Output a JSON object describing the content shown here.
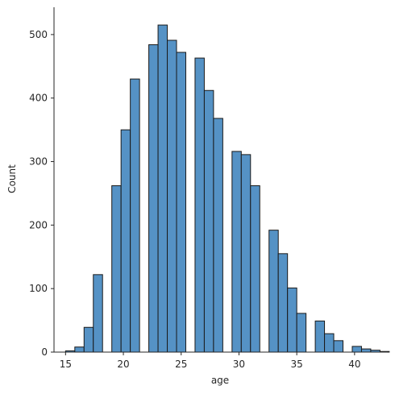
{
  "chart_data": {
    "type": "histogram",
    "xlabel": "age",
    "ylabel": "Count",
    "xlim": [
      14.0,
      42.8
    ],
    "ylim": [
      0,
      543
    ],
    "xticks": [
      15,
      20,
      25,
      30,
      35,
      40
    ],
    "yticks": [
      0,
      100,
      200,
      300,
      400,
      500
    ],
    "grid": false,
    "bar_color": "#5592c5",
    "edge_color": "#1a1a1a",
    "bins": [
      {
        "x0": 15.0,
        "x1": 15.8,
        "value": 2
      },
      {
        "x0": 15.8,
        "x1": 16.6,
        "value": 8
      },
      {
        "x0": 16.6,
        "x1": 17.4,
        "value": 39
      },
      {
        "x0": 17.4,
        "x1": 18.2,
        "value": 122
      },
      {
        "x0": 18.2,
        "x1": 19.0,
        "value": 0
      },
      {
        "x0": 19.0,
        "x1": 19.8,
        "value": 262
      },
      {
        "x0": 19.8,
        "x1": 20.6,
        "value": 350
      },
      {
        "x0": 20.6,
        "x1": 21.4,
        "value": 430
      },
      {
        "x0": 21.4,
        "x1": 22.2,
        "value": 0
      },
      {
        "x0": 22.2,
        "x1": 23.0,
        "value": 484
      },
      {
        "x0": 23.0,
        "x1": 23.8,
        "value": 515
      },
      {
        "x0": 23.8,
        "x1": 24.6,
        "value": 491
      },
      {
        "x0": 24.6,
        "x1": 25.4,
        "value": 472
      },
      {
        "x0": 25.4,
        "x1": 26.2,
        "value": 0
      },
      {
        "x0": 26.2,
        "x1": 27.0,
        "value": 463
      },
      {
        "x0": 27.0,
        "x1": 27.8,
        "value": 412
      },
      {
        "x0": 27.8,
        "x1": 28.6,
        "value": 368
      },
      {
        "x0": 28.6,
        "x1": 29.4,
        "value": 0
      },
      {
        "x0": 29.4,
        "x1": 30.2,
        "value": 316
      },
      {
        "x0": 30.2,
        "x1": 31.0,
        "value": 311
      },
      {
        "x0": 31.0,
        "x1": 31.8,
        "value": 262
      },
      {
        "x0": 31.8,
        "x1": 32.6,
        "value": 0
      },
      {
        "x0": 32.6,
        "x1": 33.4,
        "value": 192
      },
      {
        "x0": 33.4,
        "x1": 34.2,
        "value": 155
      },
      {
        "x0": 34.2,
        "x1": 35.0,
        "value": 101
      },
      {
        "x0": 35.0,
        "x1": 35.8,
        "value": 61
      },
      {
        "x0": 35.8,
        "x1": 36.6,
        "value": 0
      },
      {
        "x0": 36.6,
        "x1": 37.4,
        "value": 49
      },
      {
        "x0": 37.4,
        "x1": 38.2,
        "value": 29
      },
      {
        "x0": 38.2,
        "x1": 39.0,
        "value": 18
      },
      {
        "x0": 39.0,
        "x1": 39.8,
        "value": 0
      },
      {
        "x0": 39.8,
        "x1": 40.6,
        "value": 9
      },
      {
        "x0": 40.6,
        "x1": 41.4,
        "value": 5
      },
      {
        "x0": 41.4,
        "x1": 42.2,
        "value": 3
      },
      {
        "x0": 42.2,
        "x1": 43.0,
        "value": 1
      }
    ]
  }
}
